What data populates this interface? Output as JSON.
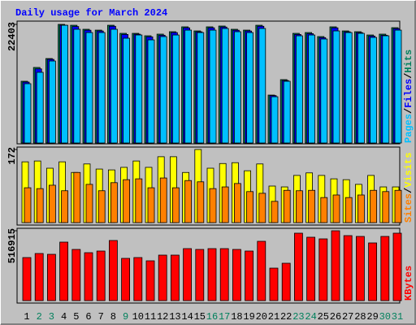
{
  "chart_data": [
    {
      "type": "bar",
      "title": "Daily usage for March 2024",
      "categories": [
        "1",
        "2",
        "3",
        "4",
        "5",
        "6",
        "7",
        "8",
        "9",
        "10",
        "11",
        "12",
        "13",
        "14",
        "15",
        "16",
        "17",
        "18",
        "19",
        "20",
        "21",
        "22",
        "23",
        "24",
        "25",
        "26",
        "27",
        "28",
        "29",
        "30",
        "31"
      ],
      "category_colors": [
        "#000000",
        "#00805c",
        "#00805c",
        "#000000",
        "#000000",
        "#000000",
        "#000000",
        "#000000",
        "#00805c",
        "#000000",
        "#000000",
        "#000000",
        "#000000",
        "#000000",
        "#000000",
        "#00805c",
        "#00805c",
        "#000000",
        "#000000",
        "#000000",
        "#000000",
        "#000000",
        "#00805c",
        "#00805c",
        "#000000",
        "#000000",
        "#000000",
        "#000000",
        "#000000",
        "#00805c",
        "#00805c"
      ],
      "legend_separator": "/",
      "series": [
        {
          "name": "Hits",
          "color": "#00805c",
          "values": [
            11660,
            14270,
            15950,
            22403,
            22240,
            21480,
            21320,
            22240,
            20710,
            20710,
            20250,
            20560,
            21020,
            21940,
            21170,
            21940,
            22090,
            21480,
            21320,
            22240,
            9050,
            11970,
            20710,
            20860,
            20100,
            21940,
            21170,
            21020,
            20400,
            20560,
            21780
          ]
        },
        {
          "name": "Files",
          "color": "#0000ff",
          "values": [
            11500,
            14000,
            15800,
            22250,
            22000,
            21300,
            21150,
            22050,
            20500,
            20550,
            20050,
            20350,
            20850,
            21750,
            21000,
            21750,
            21900,
            21300,
            21150,
            22050,
            8950,
            11800,
            20500,
            20650,
            19900,
            21750,
            21000,
            20850,
            20200,
            20350,
            21600
          ]
        },
        {
          "name": "Pages",
          "color": "#00c0ff",
          "values": [
            11200,
            13350,
            15490,
            22240,
            21480,
            20860,
            20860,
            21480,
            19790,
            20400,
            19480,
            20100,
            20400,
            21320,
            20860,
            21320,
            21630,
            21020,
            20860,
            21630,
            8740,
            11660,
            20250,
            20400,
            19640,
            21170,
            20860,
            20710,
            19940,
            20250,
            21320
          ]
        }
      ],
      "ylim": [
        0,
        22403
      ],
      "yticks": [
        22403
      ]
    },
    {
      "type": "bar",
      "legend_separator": "/",
      "series": [
        {
          "name": "Visits",
          "color": "#ffff00",
          "values": [
            143,
            145,
            128,
            143,
            118,
            138,
            126,
            124,
            130,
            145,
            130,
            155,
            155,
            118,
            172,
            128,
            139,
            141,
            122,
            138,
            86,
            84,
            111,
            117,
            111,
            103,
            101,
            90,
            111,
            84,
            84
          ]
        },
        {
          "name": "Sites",
          "color": "#ff8000",
          "values": [
            82,
            80,
            88,
            75,
            118,
            90,
            75,
            94,
            101,
            103,
            82,
            105,
            82,
            99,
            96,
            80,
            84,
            92,
            73,
            69,
            50,
            76,
            75,
            76,
            59,
            65,
            59,
            65,
            76,
            73,
            76
          ]
        }
      ],
      "ylim": [
        0,
        172
      ],
      "yticks": [
        172
      ]
    },
    {
      "type": "bar",
      "series": [
        {
          "name": "KBytes",
          "color": "#ff0000",
          "values": [
            318600,
            348600,
            342600,
            432800,
            378700,
            354600,
            366700,
            444800,
            312600,
            318600,
            294500,
            336600,
            336600,
            384700,
            378700,
            384700,
            384700,
            378700,
            366700,
            438800,
            240400,
            276500,
            498900,
            468900,
            456800,
            516915,
            480900,
            474900,
            426800,
            474900,
            498900
          ]
        }
      ],
      "ylim": [
        0,
        516915
      ],
      "yticks": [
        516915
      ]
    }
  ]
}
